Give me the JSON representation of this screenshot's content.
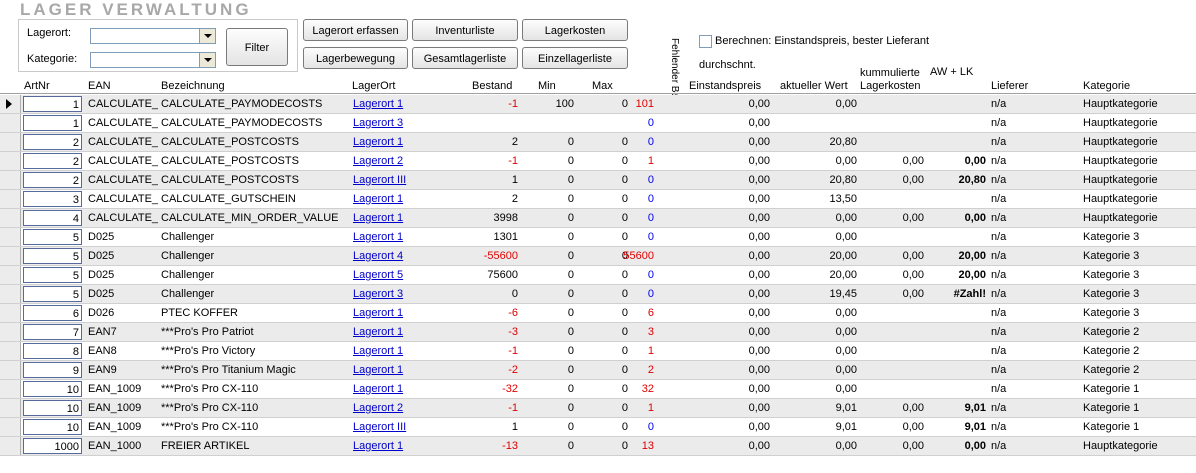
{
  "title": "LAGER VERWALTUNG",
  "filter": {
    "lagerort_label": "Lagerort:",
    "kategorie_label": "Kategorie:",
    "lagerort_value": "",
    "kategorie_value": "",
    "filter_button": "Filter"
  },
  "buttons": {
    "lagerort_erfassen": "Lagerort erfassen",
    "inventurliste": "Inventurliste",
    "lagerkosten": "Lagerkosten",
    "lagerbewegung": "Lagerbewegung",
    "gesamtlagerliste": "Gesamtlagerliste",
    "einzellagerliste": "Einzellagerliste"
  },
  "berechnen_label": "Berechnen: Einstandspreis, bester Lieferant",
  "columns": {
    "artnr": "ArtNr",
    "ean": "EAN",
    "bezeichnung": "Bezeichnung",
    "lagerort": "LagerOrt",
    "bestand": "Bestand",
    "min": "Min",
    "max": "Max",
    "fehlender_bestand": "Fehlender Bestand Stk.",
    "durchschn": "durchschnt.",
    "einstandspreis": "Einstandspreis",
    "aktueller_wert": "aktueller Wert",
    "kummulierte_1": "kummulierte",
    "kummulierte_2": "Lagerkosten",
    "aw_lk": "AW + LK",
    "lieferer": "Lieferer",
    "kategorie": "Kategorie"
  },
  "rows": [
    {
      "artnr": "1",
      "ean": "CALCULATE_",
      "bez": "CALCULATE_PAYMODECOSTS",
      "ort": "Lagerort 1",
      "bestand": "-1",
      "min": "100",
      "max": "0",
      "fehl": "101",
      "einst": "0,00",
      "wert": "0,00",
      "kum": "",
      "aw": "",
      "lief": "n/a",
      "kat": "Hauptkategorie"
    },
    {
      "artnr": "1",
      "ean": "CALCULATE_",
      "bez": "CALCULATE_PAYMODECOSTS",
      "ort": "Lagerort 3",
      "bestand": "",
      "min": "",
      "max": "",
      "fehl": "0",
      "einst": "0,00",
      "wert": "",
      "kum": "",
      "aw": "",
      "lief": "n/a",
      "kat": "Hauptkategorie"
    },
    {
      "artnr": "2",
      "ean": "CALCULATE_",
      "bez": "CALCULATE_POSTCOSTS",
      "ort": "Lagerort 1",
      "bestand": "2",
      "min": "0",
      "max": "0",
      "fehl": "0",
      "einst": "0,00",
      "wert": "20,80",
      "kum": "",
      "aw": "",
      "lief": "n/a",
      "kat": "Hauptkategorie"
    },
    {
      "artnr": "2",
      "ean": "CALCULATE_",
      "bez": "CALCULATE_POSTCOSTS",
      "ort": "Lagerort 2",
      "bestand": "-1",
      "min": "0",
      "max": "0",
      "fehl": "1",
      "einst": "0,00",
      "wert": "0,00",
      "kum": "0,00",
      "aw": "0,00",
      "lief": "n/a",
      "kat": "Hauptkategorie"
    },
    {
      "artnr": "2",
      "ean": "CALCULATE_",
      "bez": "CALCULATE_POSTCOSTS",
      "ort": "Lagerort III",
      "bestand": "1",
      "min": "0",
      "max": "0",
      "fehl": "0",
      "einst": "0,00",
      "wert": "20,80",
      "kum": "0,00",
      "aw": "20,80",
      "lief": "n/a",
      "kat": "Hauptkategorie"
    },
    {
      "artnr": "3",
      "ean": "CALCULATE_",
      "bez": "CALCULATE_GUTSCHEIN",
      "ort": "Lagerort 1",
      "bestand": "2",
      "min": "0",
      "max": "0",
      "fehl": "0",
      "einst": "0,00",
      "wert": "13,50",
      "kum": "",
      "aw": "",
      "lief": "n/a",
      "kat": "Hauptkategorie"
    },
    {
      "artnr": "4",
      "ean": "CALCULATE_",
      "bez": "CALCULATE_MIN_ORDER_VALUE",
      "ort": "Lagerort 1",
      "bestand": "3998",
      "min": "0",
      "max": "0",
      "fehl": "0",
      "einst": "0,00",
      "wert": "0,00",
      "kum": "0,00",
      "aw": "0,00",
      "lief": "n/a",
      "kat": "Hauptkategorie"
    },
    {
      "artnr": "5",
      "ean": "D025",
      "bez": "Challenger",
      "ort": "Lagerort 1",
      "bestand": "1301",
      "min": "0",
      "max": "0",
      "fehl": "0",
      "einst": "0,00",
      "wert": "0,00",
      "kum": "",
      "aw": "",
      "lief": "n/a",
      "kat": "Kategorie 3"
    },
    {
      "artnr": "5",
      "ean": "D025",
      "bez": "Challenger",
      "ort": "Lagerort 4",
      "bestand": "-55600",
      "min": "0",
      "max": "0",
      "fehl": "55600",
      "einst": "0,00",
      "wert": "20,00",
      "kum": "0,00",
      "aw": "20,00",
      "lief": "n/a",
      "kat": "Kategorie 3"
    },
    {
      "artnr": "5",
      "ean": "D025",
      "bez": "Challenger",
      "ort": "Lagerort 5",
      "bestand": "75600",
      "min": "0",
      "max": "0",
      "fehl": "0",
      "einst": "0,00",
      "wert": "20,00",
      "kum": "0,00",
      "aw": "20,00",
      "lief": "n/a",
      "kat": "Kategorie 3"
    },
    {
      "artnr": "5",
      "ean": "D025",
      "bez": "Challenger",
      "ort": "Lagerort 3",
      "bestand": "0",
      "min": "0",
      "max": "0",
      "fehl": "0",
      "einst": "0,00",
      "wert": "19,45",
      "kum": "0,00",
      "aw": "#Zahl!",
      "lief": "n/a",
      "kat": "Kategorie 3"
    },
    {
      "artnr": "6",
      "ean": "D026",
      "bez": "PTEC KOFFER",
      "ort": "Lagerort 1",
      "bestand": "-6",
      "min": "0",
      "max": "0",
      "fehl": "6",
      "einst": "0,00",
      "wert": "0,00",
      "kum": "",
      "aw": "",
      "lief": "n/a",
      "kat": "Kategorie 3"
    },
    {
      "artnr": "7",
      "ean": "EAN7",
      "bez": "***Pro's Pro Patriot",
      "ort": "Lagerort 1",
      "bestand": "-3",
      "min": "0",
      "max": "0",
      "fehl": "3",
      "einst": "0,00",
      "wert": "0,00",
      "kum": "",
      "aw": "",
      "lief": "n/a",
      "kat": "Kategorie 2"
    },
    {
      "artnr": "8",
      "ean": "EAN8",
      "bez": "***Pro's Pro Victory",
      "ort": "Lagerort 1",
      "bestand": "-1",
      "min": "0",
      "max": "0",
      "fehl": "1",
      "einst": "0,00",
      "wert": "0,00",
      "kum": "",
      "aw": "",
      "lief": "n/a",
      "kat": "Kategorie 2"
    },
    {
      "artnr": "9",
      "ean": "EAN9",
      "bez": "***Pro's Pro Titanium Magic",
      "ort": "Lagerort 1",
      "bestand": "-2",
      "min": "0",
      "max": "0",
      "fehl": "2",
      "einst": "0,00",
      "wert": "0,00",
      "kum": "",
      "aw": "",
      "lief": "n/a",
      "kat": "Kategorie 2"
    },
    {
      "artnr": "10",
      "ean": "EAN_1009",
      "bez": "***Pro's Pro CX-110",
      "ort": "Lagerort 1",
      "bestand": "-32",
      "min": "0",
      "max": "0",
      "fehl": "32",
      "einst": "0,00",
      "wert": "0,00",
      "kum": "",
      "aw": "",
      "lief": "n/a",
      "kat": "Kategorie 1"
    },
    {
      "artnr": "10",
      "ean": "EAN_1009",
      "bez": "***Pro's Pro CX-110",
      "ort": "Lagerort 2",
      "bestand": "-1",
      "min": "0",
      "max": "0",
      "fehl": "1",
      "einst": "0,00",
      "wert": "9,01",
      "kum": "0,00",
      "aw": "9,01",
      "lief": "n/a",
      "kat": "Kategorie 1"
    },
    {
      "artnr": "10",
      "ean": "EAN_1009",
      "bez": "***Pro's Pro CX-110",
      "ort": "Lagerort III",
      "bestand": "1",
      "min": "0",
      "max": "0",
      "fehl": "0",
      "einst": "0,00",
      "wert": "9,01",
      "kum": "0,00",
      "aw": "9,01",
      "lief": "n/a",
      "kat": "Kategorie 1"
    },
    {
      "artnr": "1000",
      "ean": "EAN_1000",
      "bez": "FREIER ARTIKEL",
      "ort": "Lagerort 1",
      "bestand": "-13",
      "min": "0",
      "max": "0",
      "fehl": "13",
      "einst": "0,00",
      "wert": "0,00",
      "kum": "0,00",
      "aw": "0,00",
      "lief": "n/a",
      "kat": "Hauptkategorie"
    }
  ],
  "colors": {
    "negative": "#e00000",
    "link": "#0000cc",
    "blue_value": "#0000ee",
    "title": "#a8a8a8"
  }
}
